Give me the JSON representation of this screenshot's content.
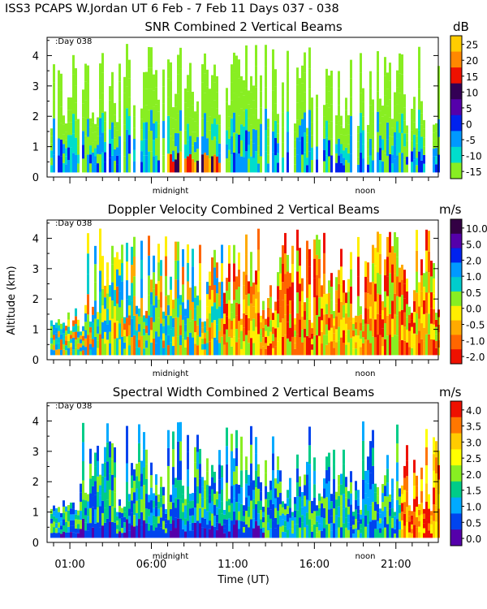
{
  "header": {
    "title": "ISS3 PCAPS W.Jordan UT    6 Feb -   7 Feb 11 Days 037 - 038"
  },
  "chart_data": [
    {
      "type": "heatmap",
      "title": "SNR Combined 2 Vertical Beams",
      "ylabel": "",
      "xlabel": "",
      "ylim": [
        0,
        4.6
      ],
      "y_ticks": [
        "0",
        "1",
        "2",
        "3",
        "4"
      ],
      "day_label": ":Day 038",
      "time_markers": [
        "midnight",
        "noon"
      ],
      "colorbar": {
        "unit": "dB",
        "labels": [
          "25",
          "20",
          "15",
          "10",
          "5",
          "0",
          "-5",
          "-10",
          "-15"
        ],
        "colors": [
          "#ffcc00",
          "#ff8800",
          "#ee1100",
          "#330055",
          "#5500aa",
          "#0022ee",
          "#0099ff",
          "#00ddcc",
          "#88ee22"
        ]
      }
    },
    {
      "type": "heatmap",
      "title": "Doppler Velocity Combined 2 Vertical Beams",
      "ylabel": "Altitude (km)",
      "xlabel": "",
      "ylim": [
        0,
        4.6
      ],
      "y_ticks": [
        "0",
        "1",
        "2",
        "3",
        "4"
      ],
      "day_label": ":Day 038",
      "time_markers": [
        "midnight",
        "noon"
      ],
      "colorbar": {
        "unit": "m/s",
        "labels": [
          "10.0",
          "5.0",
          "2.0",
          "1.0",
          "0.5",
          "0.0",
          "-0.5",
          "-1.0",
          "-2.0"
        ],
        "colors": [
          "#330044",
          "#5500aa",
          "#0022ee",
          "#0099ff",
          "#00cccc",
          "#88ee22",
          "#ffee00",
          "#ffaa00",
          "#ff6600",
          "#ee1100"
        ]
      }
    },
    {
      "type": "heatmap",
      "title": "Spectral Width Combined 2 Vertical Beams",
      "ylabel": "",
      "xlabel": "Time (UT)",
      "ylim": [
        0,
        4.6
      ],
      "y_ticks": [
        "0",
        "1",
        "2",
        "3",
        "4"
      ],
      "day_label": ":Day 038",
      "time_markers": [
        "midnight",
        "noon"
      ],
      "x_ticks": [
        "01:00",
        "06:00",
        "11:00",
        "16:00",
        "21:00"
      ],
      "colorbar": {
        "unit": "m/s",
        "labels": [
          "4.0",
          "3.5",
          "3.0",
          "2.5",
          "2.0",
          "1.5",
          "1.0",
          "0.5",
          "0.0"
        ],
        "colors": [
          "#ee1100",
          "#ff7700",
          "#ffcc00",
          "#ffff00",
          "#88ee22",
          "#00cc88",
          "#00aaff",
          "#0044ee",
          "#5500aa"
        ]
      }
    }
  ]
}
